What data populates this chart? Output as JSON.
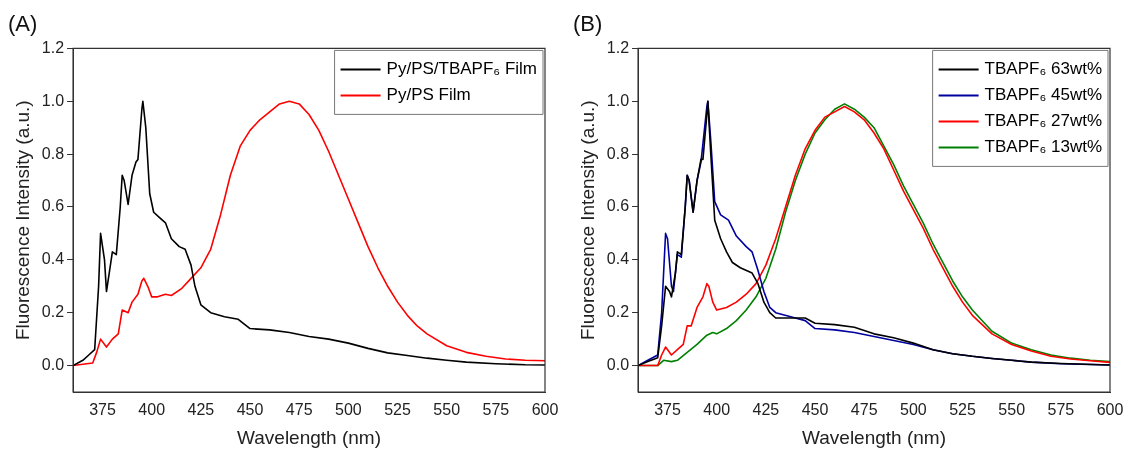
{
  "chart_data": [
    {
      "type": "line",
      "title": "(A)",
      "xlabel": "Wavelength (nm)",
      "ylabel": "Fluorescence Intensity (a.u.)",
      "xlim": [
        360,
        600
      ],
      "ylim": [
        -0.1,
        1.2
      ],
      "xticks": [
        375,
        400,
        425,
        450,
        475,
        500,
        525,
        550,
        575,
        600
      ],
      "yticks": [
        {
          "value": 0,
          "label": "0.0"
        },
        {
          "value": 0.2,
          "label": "0.2"
        },
        {
          "value": 0.4,
          "label": "0.4"
        },
        {
          "value": 0.6,
          "label": "0.6"
        },
        {
          "value": 0.8,
          "label": "0.8"
        },
        {
          "value": 1,
          "label": "1.0"
        },
        {
          "value": 1.2,
          "label": "1.2"
        }
      ],
      "grid": false,
      "legend": "top right",
      "marker": "none",
      "line_style": "solid",
      "series": [
        {
          "name": "Py/PS/TBAPF₆ Film",
          "color": "#000000",
          "x": [
            360,
            365,
            368,
            371,
            373,
            374,
            376,
            377,
            379,
            380,
            382,
            384,
            385,
            386,
            388,
            390,
            392,
            393,
            395,
            395.5,
            397,
            399,
            401,
            404,
            407,
            410,
            414,
            417,
            420,
            422,
            425,
            430,
            437,
            444,
            450,
            460,
            470,
            480,
            490,
            500,
            510,
            520,
            530,
            540,
            550,
            560,
            575,
            590,
            600
          ],
          "values": [
            0,
            0.02,
            0.04,
            0.06,
            0.3,
            0.5,
            0.4,
            0.28,
            0.38,
            0.43,
            0.42,
            0.6,
            0.72,
            0.7,
            0.61,
            0.72,
            0.77,
            0.78,
            0.97,
            1.0,
            0.9,
            0.65,
            0.58,
            0.56,
            0.54,
            0.48,
            0.45,
            0.44,
            0.38,
            0.3,
            0.23,
            0.2,
            0.185,
            0.175,
            0.14,
            0.135,
            0.125,
            0.11,
            0.1,
            0.085,
            0.065,
            0.048,
            0.038,
            0.028,
            0.02,
            0.013,
            0.007,
            0.003,
            0.002
          ]
        },
        {
          "name": "Py/PS Film",
          "color": "#ff0000",
          "x": [
            360,
            365,
            370,
            372,
            374,
            377,
            380,
            383,
            385,
            388,
            390,
            393,
            395,
            396,
            398,
            400,
            403,
            407,
            410,
            415,
            420,
            425,
            430,
            435,
            440,
            445,
            450,
            455,
            460,
            465,
            470,
            475,
            480,
            485,
            490,
            495,
            500,
            505,
            510,
            515,
            520,
            525,
            530,
            535,
            540,
            550,
            560,
            570,
            580,
            590,
            600
          ],
          "values": [
            0,
            0.005,
            0.01,
            0.05,
            0.1,
            0.07,
            0.1,
            0.12,
            0.21,
            0.2,
            0.24,
            0.27,
            0.32,
            0.33,
            0.3,
            0.26,
            0.26,
            0.27,
            0.265,
            0.29,
            0.33,
            0.37,
            0.44,
            0.57,
            0.72,
            0.83,
            0.89,
            0.93,
            0.96,
            0.99,
            1.0,
            0.99,
            0.95,
            0.89,
            0.81,
            0.72,
            0.63,
            0.54,
            0.45,
            0.37,
            0.3,
            0.24,
            0.19,
            0.15,
            0.12,
            0.075,
            0.05,
            0.035,
            0.025,
            0.02,
            0.018
          ]
        }
      ]
    },
    {
      "type": "line",
      "title": "(B)",
      "xlabel": "Wavelength (nm)",
      "ylabel": "Fluorescence Intensity (a.u.)",
      "xlim": [
        360,
        600
      ],
      "ylim": [
        -0.1,
        1.2
      ],
      "xticks": [
        375,
        400,
        425,
        450,
        475,
        500,
        525,
        550,
        575,
        600
      ],
      "yticks": [
        {
          "value": 0,
          "label": "0.0"
        },
        {
          "value": 0.2,
          "label": "0.2"
        },
        {
          "value": 0.4,
          "label": "0.4"
        },
        {
          "value": 0.6,
          "label": "0.6"
        },
        {
          "value": 0.8,
          "label": "0.8"
        },
        {
          "value": 1,
          "label": "1.0"
        },
        {
          "value": 1.2,
          "label": "1.2"
        }
      ],
      "grid": false,
      "legend": "top right",
      "marker": "none",
      "line_style": "solid",
      "series": [
        {
          "name": "TBAPF₆ 63wt%",
          "color": "#000000",
          "x": [
            360,
            365,
            370,
            372,
            374,
            376,
            377,
            379,
            380,
            382,
            384,
            385,
            386,
            388,
            390,
            392,
            393,
            395,
            395.5,
            397,
            399,
            402,
            405,
            408,
            412,
            418,
            421,
            424,
            427,
            430,
            440,
            445,
            450,
            460,
            470,
            480,
            490,
            500,
            510,
            520,
            530,
            540,
            550,
            560,
            575,
            600
          ],
          "values": [
            0,
            0.015,
            0.03,
            0.15,
            0.3,
            0.28,
            0.26,
            0.35,
            0.43,
            0.42,
            0.6,
            0.72,
            0.7,
            0.58,
            0.7,
            0.78,
            0.78,
            0.95,
            1.0,
            0.8,
            0.55,
            0.48,
            0.43,
            0.39,
            0.37,
            0.35,
            0.31,
            0.24,
            0.2,
            0.18,
            0.18,
            0.18,
            0.16,
            0.155,
            0.145,
            0.12,
            0.105,
            0.085,
            0.06,
            0.045,
            0.035,
            0.027,
            0.02,
            0.013,
            0.008,
            0.002
          ]
        },
        {
          "name": "TBAPF₆ 45wt%",
          "color": "#0000a0",
          "x": [
            360,
            365,
            370,
            372,
            374,
            375,
            377,
            378,
            380,
            382,
            384,
            385,
            386,
            388,
            390,
            392,
            395,
            395.5,
            397,
            399,
            402,
            406,
            410,
            415,
            418,
            421,
            424,
            427,
            430,
            440,
            445,
            450,
            460,
            470,
            480,
            490,
            500,
            510,
            520,
            530,
            540,
            550,
            560,
            575,
            600
          ],
          "values": [
            0,
            0.02,
            0.04,
            0.2,
            0.5,
            0.48,
            0.3,
            0.28,
            0.42,
            0.41,
            0.6,
            0.72,
            0.7,
            0.58,
            0.7,
            0.77,
            0.98,
            1.0,
            0.85,
            0.62,
            0.57,
            0.55,
            0.49,
            0.45,
            0.43,
            0.36,
            0.28,
            0.22,
            0.2,
            0.18,
            0.17,
            0.14,
            0.135,
            0.125,
            0.11,
            0.095,
            0.08,
            0.06,
            0.045,
            0.035,
            0.027,
            0.02,
            0.013,
            0.007,
            0.002
          ]
        },
        {
          "name": "TBAPF₆ 27wt%",
          "color": "#ff0000",
          "x": [
            360,
            370,
            372,
            374,
            377,
            380,
            383,
            385,
            387,
            390,
            393,
            395,
            396,
            398,
            400,
            405,
            410,
            415,
            420,
            425,
            430,
            435,
            440,
            445,
            450,
            455,
            460,
            465,
            470,
            475,
            480,
            485,
            490,
            495,
            500,
            505,
            510,
            515,
            520,
            525,
            530,
            540,
            550,
            560,
            570,
            580,
            590,
            600
          ],
          "values": [
            0,
            0,
            0.04,
            0.07,
            0.04,
            0.06,
            0.08,
            0.15,
            0.15,
            0.22,
            0.26,
            0.31,
            0.3,
            0.24,
            0.21,
            0.22,
            0.24,
            0.27,
            0.31,
            0.38,
            0.48,
            0.6,
            0.72,
            0.82,
            0.89,
            0.94,
            0.96,
            0.98,
            0.96,
            0.93,
            0.88,
            0.82,
            0.74,
            0.66,
            0.59,
            0.52,
            0.44,
            0.37,
            0.3,
            0.24,
            0.19,
            0.12,
            0.08,
            0.055,
            0.035,
            0.025,
            0.018,
            0.012
          ]
        },
        {
          "name": "TBAPF₆ 13wt%",
          "color": "#008000",
          "x": [
            360,
            370,
            373,
            377,
            380,
            385,
            390,
            395,
            398,
            400,
            405,
            410,
            415,
            420,
            425,
            430,
            435,
            440,
            445,
            450,
            455,
            460,
            465,
            470,
            475,
            480,
            485,
            490,
            495,
            500,
            505,
            510,
            515,
            520,
            525,
            530,
            540,
            550,
            560,
            570,
            580,
            590,
            600
          ],
          "values": [
            0,
            0,
            0.02,
            0.015,
            0.02,
            0.05,
            0.08,
            0.115,
            0.125,
            0.12,
            0.14,
            0.17,
            0.21,
            0.26,
            0.33,
            0.44,
            0.58,
            0.7,
            0.8,
            0.88,
            0.93,
            0.97,
            0.99,
            0.97,
            0.94,
            0.9,
            0.83,
            0.76,
            0.68,
            0.61,
            0.54,
            0.46,
            0.39,
            0.32,
            0.26,
            0.21,
            0.13,
            0.085,
            0.06,
            0.04,
            0.028,
            0.02,
            0.015
          ]
        }
      ]
    }
  ]
}
